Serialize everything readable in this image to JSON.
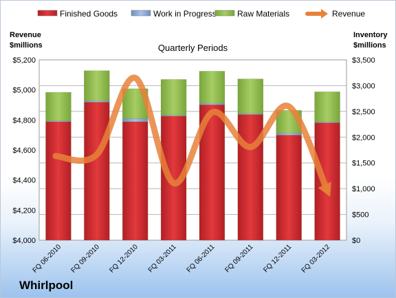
{
  "chart_data": {
    "type": "bar",
    "subtitle": "Quarterly Periods",
    "left_axis_title": [
      "Revenue",
      "$millions"
    ],
    "right_axis_title": [
      "Inventory",
      "$millions"
    ],
    "categories": [
      "FQ 06-2010",
      "FQ 09-2010",
      "FQ 12-2010",
      "FQ 03-2011",
      "FQ 06-2011",
      "FQ 09-2011",
      "FQ 12-2011",
      "FQ 03-2012"
    ],
    "stacked": true,
    "series": [
      {
        "name": "Finished Goods",
        "axis": "right",
        "color": "#c0282d",
        "values": [
          2300,
          2680,
          2300,
          2410,
          2630,
          2440,
          2040,
          2280
        ]
      },
      {
        "name": "Work in Progress",
        "axis": "right",
        "color": "#8ea9d8",
        "values": [
          20,
          30,
          60,
          20,
          30,
          20,
          40,
          20
        ]
      },
      {
        "name": "Raw Materials",
        "axis": "right",
        "color": "#8db94d",
        "values": [
          550,
          580,
          580,
          690,
          620,
          670,
          440,
          580
        ]
      },
      {
        "name": "Revenue",
        "axis": "left",
        "type": "line",
        "color": "#e8813a",
        "values": [
          4560,
          4570,
          5080,
          4380,
          4850,
          4620,
          4890,
          4330
        ]
      }
    ],
    "left_ylim": [
      4000,
      5200
    ],
    "left_ticks": [
      "$4,000",
      "$4,200",
      "$4,400",
      "$4,600",
      "$4,800",
      "$5,000",
      "$5,200"
    ],
    "right_ylim": [
      0,
      3500
    ],
    "right_ticks": [
      "$0",
      "$500",
      "$1,000",
      "$1,500",
      "$2,000",
      "$2,500",
      "$3,000",
      "$3,500"
    ],
    "grid": true,
    "legend_position": "top"
  },
  "brand": "Whirlpool"
}
